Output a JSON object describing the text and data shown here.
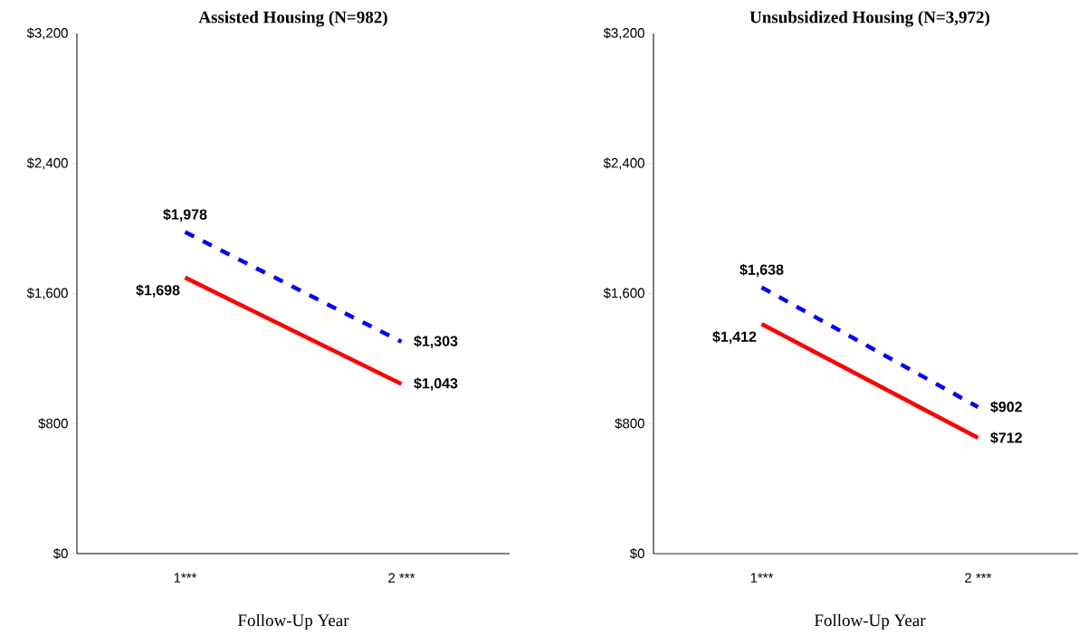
{
  "chart_data": [
    {
      "type": "line",
      "title": "Assisted Housing (N=982)",
      "xlabel": "Follow-Up Year",
      "categories": [
        "1***",
        "2 ***"
      ],
      "series": [
        {
          "color": "#0000ff",
          "line_style": "dashed",
          "values": [
            1978,
            1303
          ],
          "value_labels": [
            "$1,978",
            "$1,303"
          ]
        },
        {
          "color": "#ff0000",
          "line_style": "solid",
          "values": [
            1698,
            1043
          ],
          "value_labels": [
            "$1,698",
            "$1,043"
          ]
        }
      ],
      "ylim": [
        0,
        3200
      ],
      "yticks": [
        {
          "value": 0,
          "label": "$0"
        },
        {
          "value": 800,
          "label": "$800"
        },
        {
          "value": 1600,
          "label": "$1,600"
        },
        {
          "value": 2400,
          "label": "$2,400"
        },
        {
          "value": 3200,
          "label": "$3,200"
        }
      ]
    },
    {
      "type": "line",
      "title": "Unsubsidized Housing (N=3,972)",
      "xlabel": "Follow-Up Year",
      "categories": [
        "1***",
        "2 ***"
      ],
      "series": [
        {
          "color": "#0000ff",
          "line_style": "dashed",
          "values": [
            1638,
            902
          ],
          "value_labels": [
            "$1,638",
            "$902"
          ]
        },
        {
          "color": "#ff0000",
          "line_style": "solid",
          "values": [
            1412,
            712
          ],
          "value_labels": [
            "$1,412",
            "$712"
          ]
        }
      ],
      "ylim": [
        0,
        3200
      ],
      "yticks": [
        {
          "value": 0,
          "label": "$0"
        },
        {
          "value": 800,
          "label": "$800"
        },
        {
          "value": 1600,
          "label": "$1,600"
        },
        {
          "value": 2400,
          "label": "$2,400"
        },
        {
          "value": 3200,
          "label": "$3,200"
        }
      ]
    }
  ]
}
